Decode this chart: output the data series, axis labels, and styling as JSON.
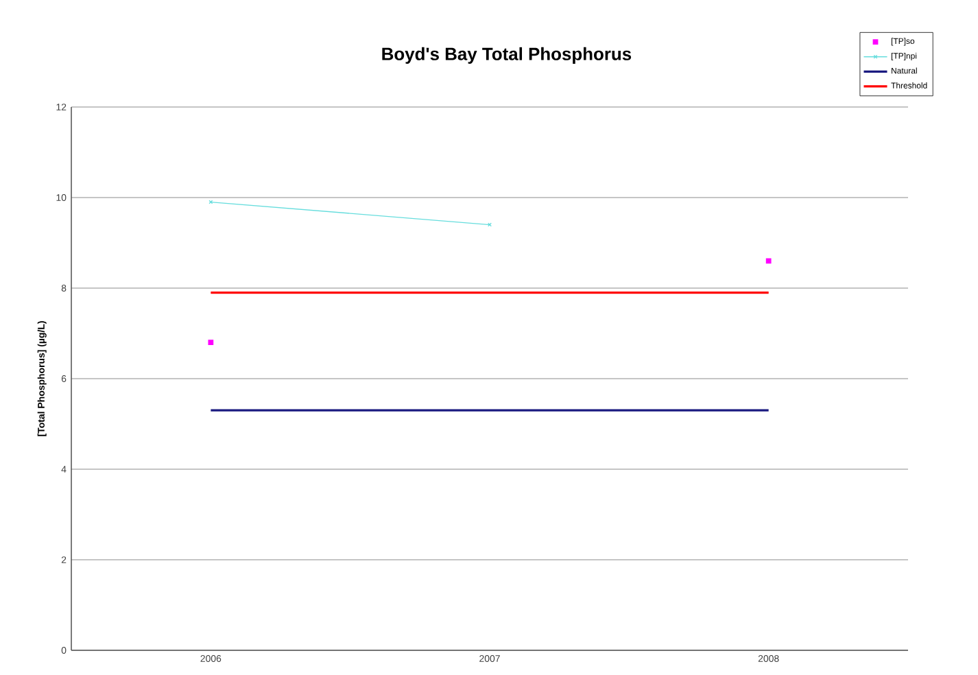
{
  "chart_data": {
    "type": "line",
    "title": "Boyd's Bay Total Phosphorus",
    "ylabel": "[Total Phosphorus] (µg/L)",
    "categories": [
      "2006",
      "2007",
      "2008"
    ],
    "series": [
      {
        "name": "[TP]so",
        "type": "scatter",
        "color": "#ff00ff",
        "marker": "square",
        "values": [
          6.8,
          null,
          8.6
        ]
      },
      {
        "name": "[TP]npi",
        "color": "#66dddd",
        "marker": "cross",
        "values": [
          9.9,
          9.4,
          null
        ]
      },
      {
        "name": "Natural",
        "color": "#1a1a80",
        "marker": "none",
        "values": [
          5.3,
          5.3,
          5.3
        ]
      },
      {
        "name": "Threshold",
        "color": "#ff0000",
        "marker": "none",
        "values": [
          7.9,
          7.9,
          7.9
        ]
      }
    ],
    "ylim": [
      0,
      12
    ],
    "yticks": [
      0,
      2,
      4,
      6,
      8,
      10,
      12
    ],
    "grid": "y",
    "legend": "top right"
  }
}
